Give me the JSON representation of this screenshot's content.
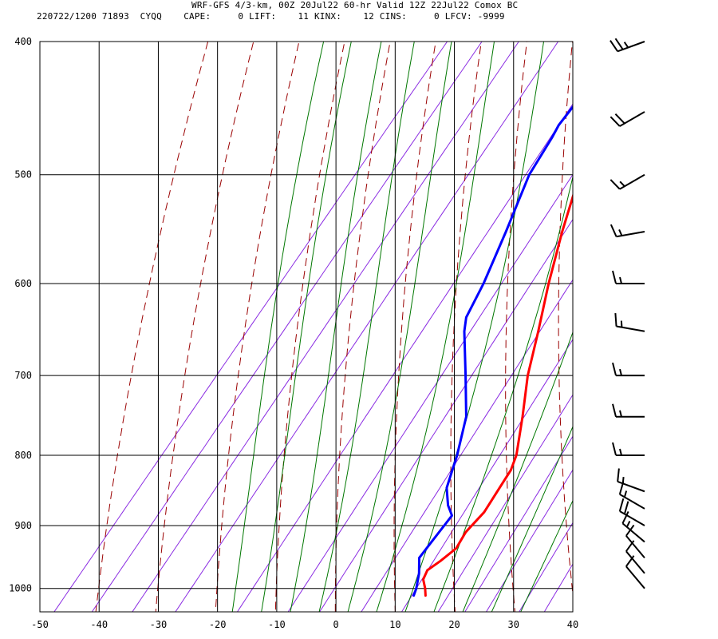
{
  "header": {
    "title": "WRF-GFS 4/3-km, 00Z 20Jul22 60-hr Valid 12Z 22Jul22 Comox BC",
    "station_line": "220722/1200 71893  CYQQ    CAPE:     0 LIFT:    11 KINX:    12 CINS:     0 LFCV: -9999"
  },
  "colors": {
    "temperature": "#ff0000",
    "dewpoint": "#0000ff",
    "dry_adiabat": "#9a0000",
    "moist_adiabat": "#007700",
    "mixing_ratio": "#8a2be2",
    "grid": "#000000"
  },
  "chart_data": {
    "type": "line",
    "title": "",
    "xlabel": "",
    "ylabel": "",
    "x_axis": {
      "min": -50,
      "max": 40,
      "ticks": [
        -50,
        -40,
        -30,
        -20,
        -10,
        0,
        10,
        20,
        30,
        40
      ]
    },
    "y_axis": {
      "scale": "log-pressure",
      "top": 400,
      "bottom": 1040,
      "ticks": [
        400,
        500,
        600,
        700,
        800,
        900,
        1000
      ]
    },
    "grid": true,
    "series": [
      {
        "key": "temperature",
        "points": [
          {
            "p": 1012,
            "t": 13
          },
          {
            "p": 1000,
            "t": 12
          },
          {
            "p": 985,
            "t": 10.5
          },
          {
            "p": 970,
            "t": 10
          },
          {
            "p": 955,
            "t": 11
          },
          {
            "p": 935,
            "t": 12
          },
          {
            "p": 910,
            "t": 11.5
          },
          {
            "p": 880,
            "t": 12
          },
          {
            "p": 850,
            "t": 11.5
          },
          {
            "p": 820,
            "t": 11
          },
          {
            "p": 800,
            "t": 10
          },
          {
            "p": 750,
            "t": 6
          },
          {
            "p": 700,
            "t": 1.5
          },
          {
            "p": 650,
            "t": -2.5
          },
          {
            "p": 600,
            "t": -7
          },
          {
            "p": 550,
            "t": -11.5
          },
          {
            "p": 500,
            "t": -16
          },
          {
            "p": 450,
            "t": -21
          },
          {
            "p": 415,
            "t": -25
          }
        ]
      },
      {
        "key": "dewpoint",
        "points": [
          {
            "p": 1012,
            "t": 11
          },
          {
            "p": 1000,
            "t": 10.5
          },
          {
            "p": 975,
            "t": 9
          },
          {
            "p": 950,
            "t": 7
          },
          {
            "p": 925,
            "t": 7
          },
          {
            "p": 900,
            "t": 7
          },
          {
            "p": 885,
            "t": 7
          },
          {
            "p": 870,
            "t": 5
          },
          {
            "p": 845,
            "t": 2.5
          },
          {
            "p": 800,
            "t": 0
          },
          {
            "p": 750,
            "t": -3.5
          },
          {
            "p": 700,
            "t": -9
          },
          {
            "p": 650,
            "t": -15
          },
          {
            "p": 635,
            "t": -16.5
          },
          {
            "p": 600,
            "t": -18
          },
          {
            "p": 550,
            "t": -21
          },
          {
            "p": 500,
            "t": -24.5
          },
          {
            "p": 470,
            "t": -25.5
          },
          {
            "p": 460,
            "t": -26
          },
          {
            "p": 440,
            "t": -26
          },
          {
            "p": 415,
            "t": -26
          }
        ]
      }
    ],
    "dry_adiabats_K": [
      230,
      240,
      250,
      260,
      270,
      280,
      290,
      300,
      310,
      320,
      330,
      340,
      350,
      360,
      370
    ],
    "moist_adiabats_C": [
      -20,
      -15,
      -10,
      -5,
      0,
      5,
      10,
      15,
      20,
      25,
      30
    ],
    "mixing_ratio_lines_gkg": [
      0.05,
      0.1,
      0.2,
      0.4,
      1,
      2,
      3,
      5,
      8,
      12,
      16,
      20,
      28,
      36
    ],
    "wind_barbs": [
      {
        "p": 400,
        "dir": 250,
        "kt": 25
      },
      {
        "p": 450,
        "dir": 240,
        "kt": 20
      },
      {
        "p": 500,
        "dir": 240,
        "kt": 15
      },
      {
        "p": 550,
        "dir": 260,
        "kt": 15
      },
      {
        "p": 600,
        "dir": 270,
        "kt": 15
      },
      {
        "p": 650,
        "dir": 280,
        "kt": 15
      },
      {
        "p": 700,
        "dir": 270,
        "kt": 15
      },
      {
        "p": 750,
        "dir": 270,
        "kt": 15
      },
      {
        "p": 800,
        "dir": 270,
        "kt": 15
      },
      {
        "p": 850,
        "dir": 290,
        "kt": 15
      },
      {
        "p": 875,
        "dir": 300,
        "kt": 15
      },
      {
        "p": 900,
        "dir": 300,
        "kt": 20
      },
      {
        "p": 925,
        "dir": 310,
        "kt": 15
      },
      {
        "p": 950,
        "dir": 320,
        "kt": 10
      },
      {
        "p": 975,
        "dir": 320,
        "kt": 10
      },
      {
        "p": 1000,
        "dir": 320,
        "kt": 10
      }
    ]
  }
}
